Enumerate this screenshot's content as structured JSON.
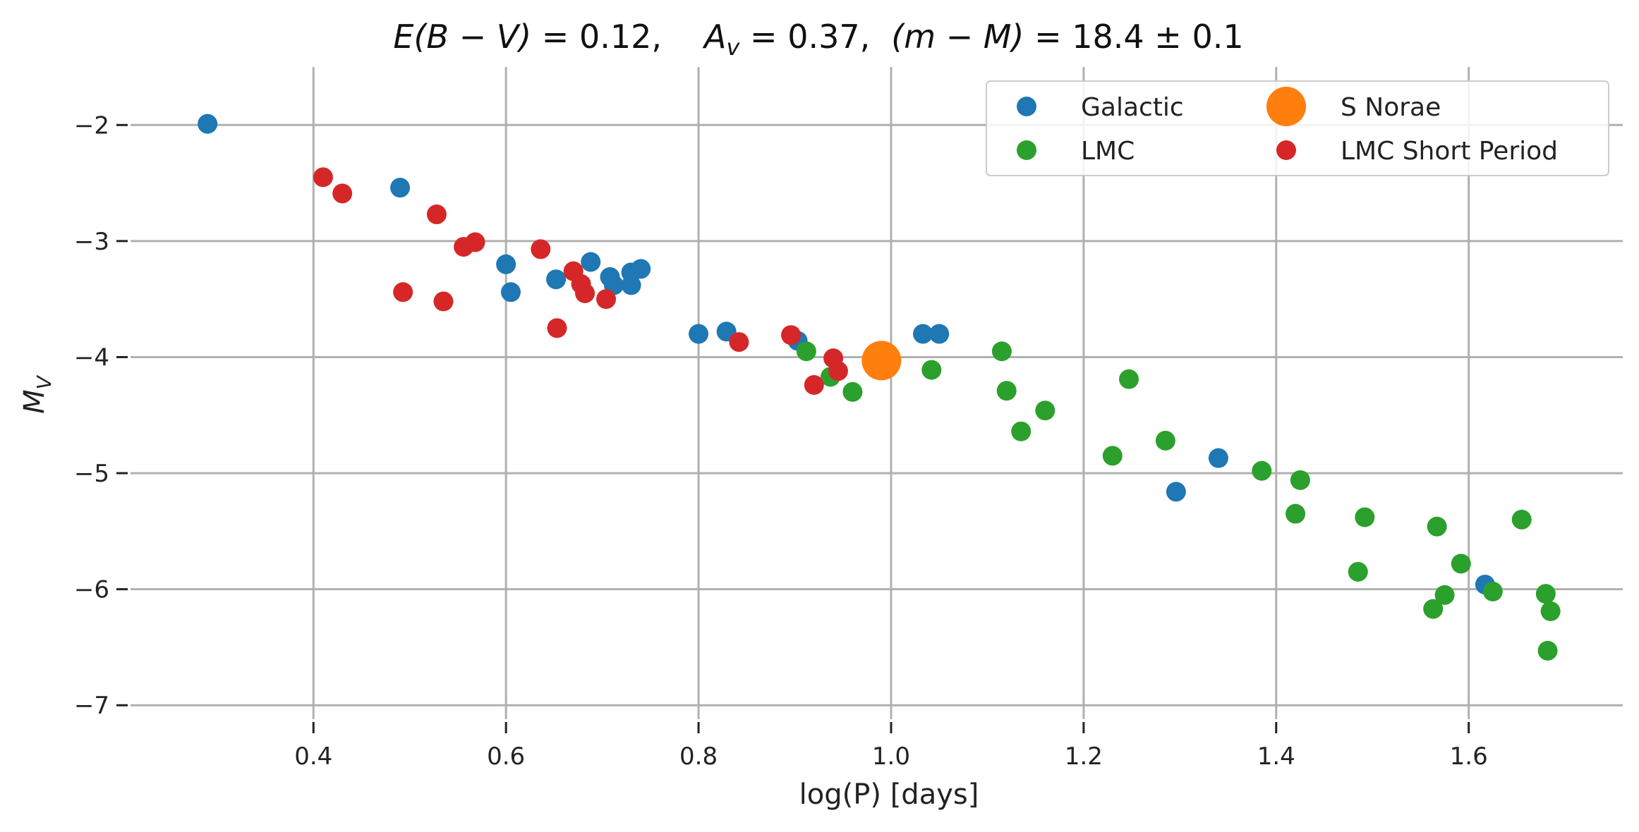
{
  "chart_data": {
    "type": "scatter",
    "title": "E(B − V) = 0.12,        A_v =  0.37,   (m − M) =  18.4 ± 0.1",
    "title_parts": {
      "ebv_label": "E(B − V)",
      "ebv_value": " = 0.12,",
      "av_label": "A",
      "av_sub": "v",
      "av_value": " =  0.37,",
      "dm_label": "(m − M)",
      "dm_value": " =  18.4 ± 0.1"
    },
    "xlabel": "log(P) [days]",
    "ylabel": "M_V",
    "ylabel_main": "M",
    "ylabel_sub": "V",
    "xlim": [
      0.21,
      1.76
    ],
    "ylim": [
      -1.5,
      -7.12
    ],
    "y_inverted": true,
    "grid": true,
    "legend_position": "top-right",
    "xticks": [
      "0.4",
      "0.6",
      "0.8",
      "1.0",
      "1.2",
      "1.4",
      "1.6"
    ],
    "xtick_values": [
      0.4,
      0.6,
      0.8,
      1.0,
      1.2,
      1.4,
      1.6
    ],
    "yticks": [
      "−2",
      "−3",
      "−4",
      "−5",
      "−6",
      "−7"
    ],
    "ytick_values": [
      -2,
      -3,
      -4,
      -5,
      -6,
      -7
    ],
    "legend_order": [
      0,
      2,
      1,
      3
    ],
    "series": [
      {
        "name": "Galactic",
        "color": "#1f77b4",
        "marker": "small",
        "points": [
          [
            0.29,
            -1.99
          ],
          [
            0.49,
            -2.54
          ],
          [
            0.6,
            -3.2
          ],
          [
            0.605,
            -3.44
          ],
          [
            0.652,
            -3.33
          ],
          [
            0.688,
            -3.18
          ],
          [
            0.708,
            -3.31
          ],
          [
            0.712,
            -3.38
          ],
          [
            0.73,
            -3.27
          ],
          [
            0.73,
            -3.38
          ],
          [
            0.74,
            -3.24
          ],
          [
            0.8,
            -3.8
          ],
          [
            0.829,
            -3.78
          ],
          [
            0.903,
            -3.86
          ],
          [
            1.033,
            -3.8
          ],
          [
            1.05,
            -3.8
          ],
          [
            1.296,
            -5.16
          ],
          [
            1.34,
            -4.87
          ],
          [
            1.617,
            -5.96
          ]
        ]
      },
      {
        "name": "S Norae",
        "color": "#ff7f0e",
        "marker": "large",
        "points": [
          [
            0.99,
            -4.03
          ]
        ]
      },
      {
        "name": "LMC",
        "color": "#2ca02c",
        "marker": "small",
        "points": [
          [
            0.912,
            -3.95
          ],
          [
            0.937,
            -4.17
          ],
          [
            0.96,
            -4.3
          ],
          [
            1.042,
            -4.11
          ],
          [
            1.115,
            -3.95
          ],
          [
            1.12,
            -4.29
          ],
          [
            1.135,
            -4.64
          ],
          [
            1.16,
            -4.46
          ],
          [
            1.23,
            -4.85
          ],
          [
            1.247,
            -4.19
          ],
          [
            1.285,
            -4.72
          ],
          [
            1.385,
            -4.98
          ],
          [
            1.42,
            -5.35
          ],
          [
            1.425,
            -5.06
          ],
          [
            1.485,
            -5.85
          ],
          [
            1.492,
            -5.38
          ],
          [
            1.563,
            -6.17
          ],
          [
            1.567,
            -5.46
          ],
          [
            1.575,
            -6.05
          ],
          [
            1.592,
            -5.78
          ],
          [
            1.625,
            -6.02
          ],
          [
            1.655,
            -5.4
          ],
          [
            1.68,
            -6.04
          ],
          [
            1.682,
            -6.53
          ],
          [
            1.685,
            -6.19
          ]
        ]
      },
      {
        "name": "LMC Short Period",
        "color": "#d62728",
        "marker": "small",
        "points": [
          [
            0.41,
            -2.45
          ],
          [
            0.43,
            -2.59
          ],
          [
            0.493,
            -3.44
          ],
          [
            0.528,
            -2.77
          ],
          [
            0.535,
            -3.52
          ],
          [
            0.556,
            -3.05
          ],
          [
            0.568,
            -3.01
          ],
          [
            0.636,
            -3.07
          ],
          [
            0.653,
            -3.75
          ],
          [
            0.67,
            -3.26
          ],
          [
            0.678,
            -3.37
          ],
          [
            0.682,
            -3.45
          ],
          [
            0.704,
            -3.5
          ],
          [
            0.842,
            -3.87
          ],
          [
            0.896,
            -3.81
          ],
          [
            0.92,
            -4.24
          ],
          [
            0.94,
            -4.01
          ],
          [
            0.945,
            -4.12
          ]
        ]
      }
    ]
  }
}
